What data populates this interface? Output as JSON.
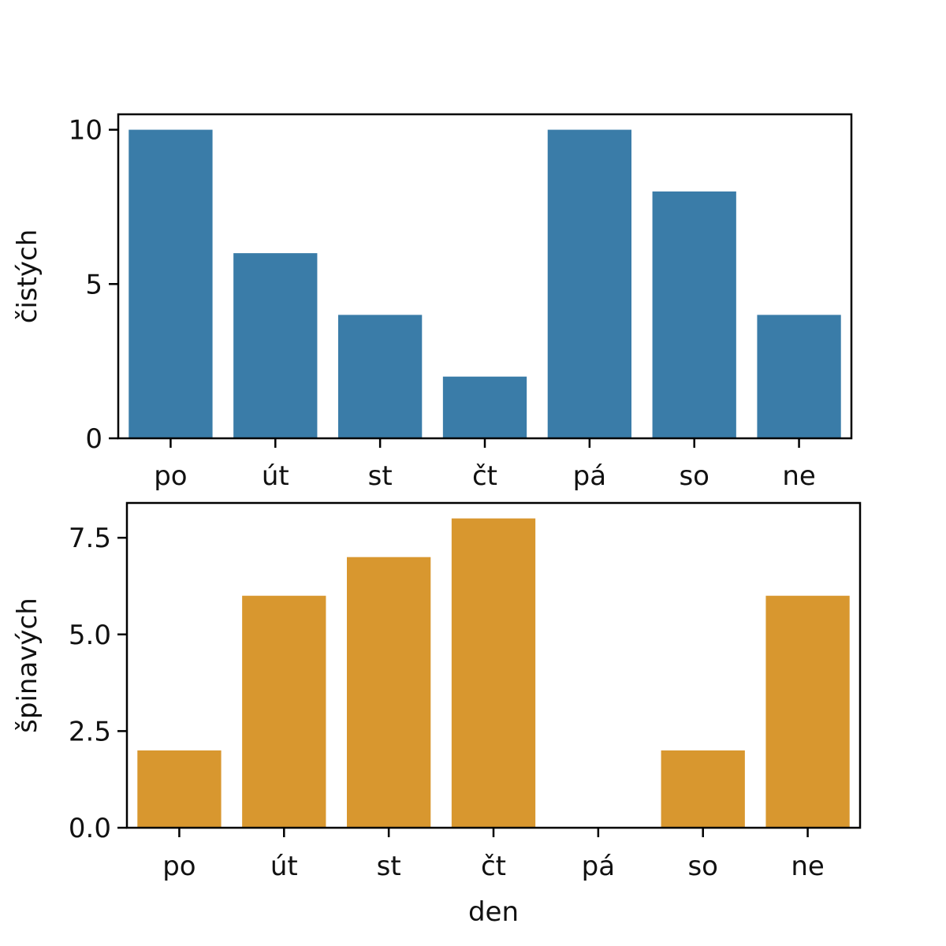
{
  "chart_data": [
    {
      "type": "bar",
      "categories": [
        "po",
        "út",
        "st",
        "čt",
        "pá",
        "so",
        "ne"
      ],
      "values": [
        10,
        6,
        4,
        2,
        10,
        8,
        4
      ],
      "xlabel": "",
      "ylabel": "čistých",
      "ylim": [
        0,
        10.5
      ],
      "yticks": [
        "0",
        "5",
        "10"
      ],
      "color": "#3a7ca8",
      "grid": false
    },
    {
      "type": "bar",
      "categories": [
        "po",
        "út",
        "st",
        "čt",
        "pá",
        "so",
        "ne"
      ],
      "values": [
        2,
        6,
        7,
        8,
        0,
        2,
        6
      ],
      "xlabel": "den",
      "ylabel": "špinavých",
      "ylim": [
        0,
        8.4
      ],
      "yticks": [
        "0.0",
        "2.5",
        "5.0",
        "7.5"
      ],
      "color": "#d8972f",
      "grid": false
    }
  ]
}
